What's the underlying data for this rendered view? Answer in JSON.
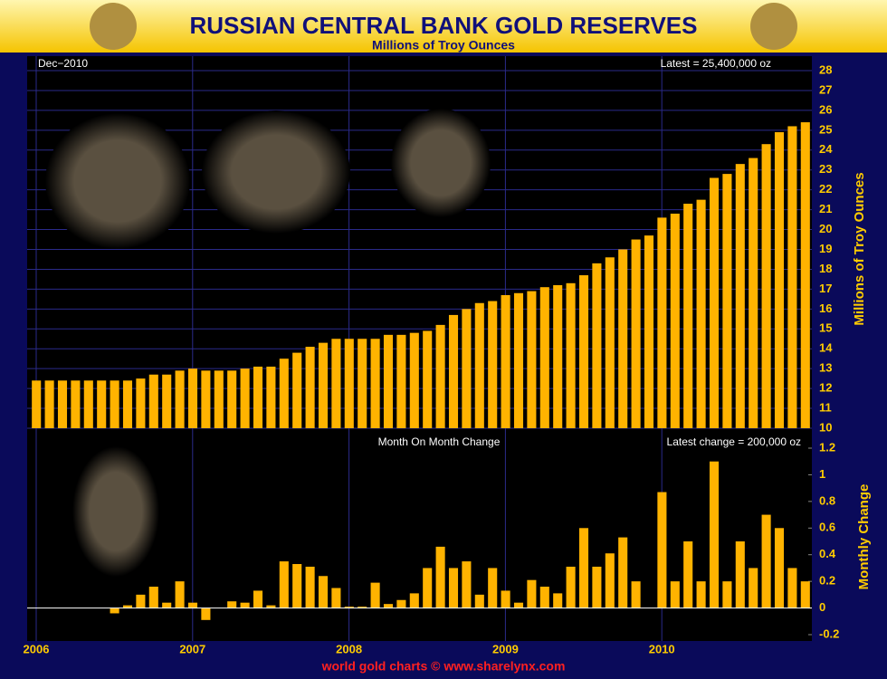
{
  "chart_data": [
    {
      "type": "bar",
      "title": "RUSSIAN CENTRAL BANK GOLD RESERVES",
      "subtitle": "Millions of Troy Ounces",
      "date_label": "Dec−2010",
      "annotation": "Latest = 25,400,000 oz",
      "y_label": "Millions of Troy Ounces",
      "color": "#ffb300",
      "categories": [
        null,
        null,
        null,
        null,
        null,
        null,
        null,
        null,
        null,
        null,
        null,
        null,
        null,
        null,
        null,
        null,
        null,
        null,
        null,
        null,
        null,
        null,
        null,
        null,
        null,
        null,
        null,
        null,
        null,
        null,
        null,
        null,
        null,
        null,
        null,
        null,
        null,
        null,
        null,
        null,
        null,
        null,
        null,
        null,
        null,
        null,
        null,
        null,
        null,
        null,
        null,
        null,
        null,
        null,
        null,
        null,
        null,
        null,
        null,
        null
      ],
      "values": [
        12.4,
        12.4,
        12.4,
        12.4,
        12.4,
        12.4,
        12.4,
        12.4,
        12.5,
        12.7,
        12.7,
        12.9,
        13.0,
        12.9,
        12.9,
        12.9,
        13.0,
        13.1,
        13.1,
        13.5,
        13.8,
        14.1,
        14.3,
        14.5,
        14.5,
        14.5,
        14.5,
        14.7,
        14.7,
        14.8,
        14.9,
        15.2,
        15.7,
        16.0,
        16.3,
        16.4,
        16.7,
        16.8,
        16.9,
        17.1,
        17.2,
        17.3,
        17.7,
        18.3,
        18.6,
        19.0,
        19.5,
        19.7,
        20.6,
        20.8,
        21.3,
        21.5,
        22.6,
        22.8,
        23.3,
        23.6,
        24.3,
        24.9,
        25.2,
        25.4
      ],
      "ylim": [
        10,
        28
      ],
      "yticks": [
        10,
        11,
        12,
        13,
        14,
        15,
        16,
        17,
        18,
        19,
        20,
        21,
        22,
        23,
        24,
        25,
        26,
        27,
        28
      ],
      "grid": true,
      "xtick_labels": [
        "2006",
        "2007",
        "2008",
        "2009",
        "2010"
      ]
    },
    {
      "type": "bar",
      "title": "Month On Month Change",
      "annotation": "Latest change = 200,000 oz",
      "y_label": "Monthly Change",
      "color": "#ffb300",
      "values": [
        0,
        0,
        0,
        0,
        0,
        0,
        -0.04,
        0.02,
        0.1,
        0.16,
        0.04,
        0.2,
        0.04,
        -0.09,
        0,
        0.05,
        0.04,
        0.13,
        0.02,
        0.35,
        0.33,
        0.31,
        0.24,
        0.15,
        0.01,
        0.01,
        0.19,
        0.03,
        0.06,
        0.11,
        0.3,
        0.46,
        0.3,
        0.35,
        0.1,
        0.3,
        0.13,
        0.04,
        0.21,
        0.16,
        0.11,
        0.31,
        0.6,
        0.31,
        0.41,
        0.53,
        0.2,
        0,
        0.87,
        0.2,
        0.5,
        0.2,
        1.1,
        0.2,
        0.5,
        0.3,
        0.7,
        0.6,
        0.3,
        0.2
      ],
      "ylim": [
        -0.2,
        1.2
      ],
      "yticks": [
        -0.2,
        0,
        0.2,
        0.4,
        0.6,
        0.8,
        1,
        1.2
      ],
      "footer": "world gold charts © www.sharelynx.com"
    }
  ]
}
